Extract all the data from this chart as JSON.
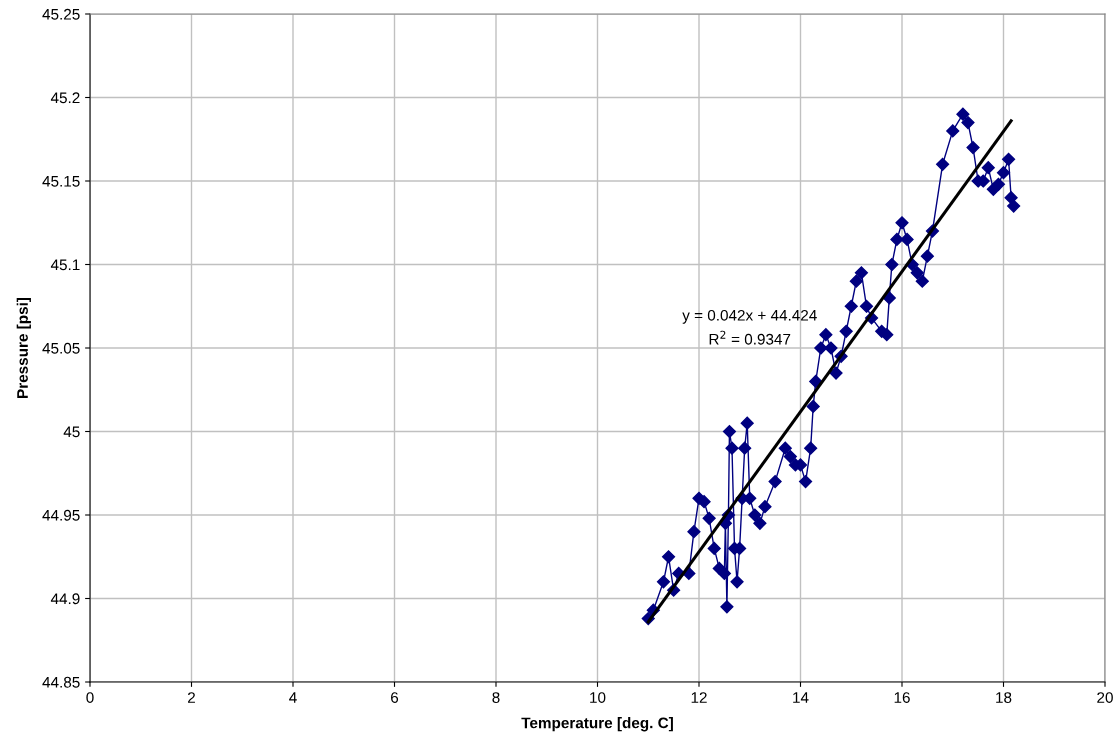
{
  "chart_data": {
    "type": "line",
    "xlabel": "Temperature [deg. C]",
    "ylabel": "Pressure [psi]",
    "xlim": [
      0,
      20
    ],
    "xticks": [
      0,
      2,
      4,
      6,
      8,
      10,
      12,
      14,
      16,
      18,
      20
    ],
    "ylim": [
      44.85,
      45.25
    ],
    "yticks": [
      44.85,
      44.9,
      44.95,
      45,
      45.05,
      45.1,
      45.15,
      45.2,
      45.25
    ],
    "grid": true,
    "line_style": "solid",
    "series": [
      {
        "color": "#000080",
        "marker": "diamond",
        "x": [
          11.0,
          11.1,
          11.3,
          11.4,
          11.5,
          11.6,
          11.8,
          11.9,
          12.0,
          12.1,
          12.2,
          12.3,
          12.4,
          12.5,
          12.52,
          12.55,
          12.58,
          12.6,
          12.65,
          12.7,
          12.75,
          12.8,
          12.85,
          12.9,
          12.95,
          13.0,
          13.1,
          13.2,
          13.3,
          13.5,
          13.7,
          13.8,
          13.9,
          14.0,
          14.1,
          14.2,
          14.25,
          14.3,
          14.4,
          14.5,
          14.6,
          14.7,
          14.8,
          14.9,
          15.0,
          15.1,
          15.2,
          15.3,
          15.4,
          15.6,
          15.7,
          15.75,
          15.8,
          15.9,
          16.0,
          16.1,
          16.2,
          16.3,
          16.4,
          16.5,
          16.6,
          16.8,
          17.0,
          17.2,
          17.3,
          17.4,
          17.5,
          17.6,
          17.7,
          17.8,
          17.9,
          18.0,
          18.1,
          18.15,
          18.2
        ],
        "values": [
          44.888,
          44.893,
          44.91,
          44.925,
          44.905,
          44.915,
          44.915,
          44.94,
          44.96,
          44.958,
          44.948,
          44.93,
          44.918,
          44.915,
          44.945,
          44.895,
          44.95,
          45.0,
          44.99,
          44.93,
          44.91,
          44.93,
          44.96,
          44.99,
          45.005,
          44.96,
          44.95,
          44.945,
          44.955,
          44.97,
          44.99,
          44.985,
          44.98,
          44.98,
          44.97,
          44.99,
          45.015,
          45.03,
          45.05,
          45.058,
          45.05,
          45.035,
          45.045,
          45.06,
          45.075,
          45.09,
          45.095,
          45.075,
          45.068,
          45.06,
          45.058,
          45.08,
          45.1,
          45.115,
          45.125,
          45.115,
          45.1,
          45.095,
          45.09,
          45.105,
          45.12,
          45.16,
          45.18,
          45.19,
          45.185,
          45.17,
          45.15,
          45.15,
          45.158,
          45.145,
          45.148,
          45.155,
          45.163,
          45.14,
          45.135
        ]
      },
      {
        "color": "#000000",
        "marker": "none",
        "x": [
          11.0,
          18.15
        ],
        "values": [
          44.886,
          45.186
        ]
      }
    ],
    "annotations": [
      "y = 0.042x + 44.424",
      "R$^{2}$ = 0.9347"
    ]
  }
}
